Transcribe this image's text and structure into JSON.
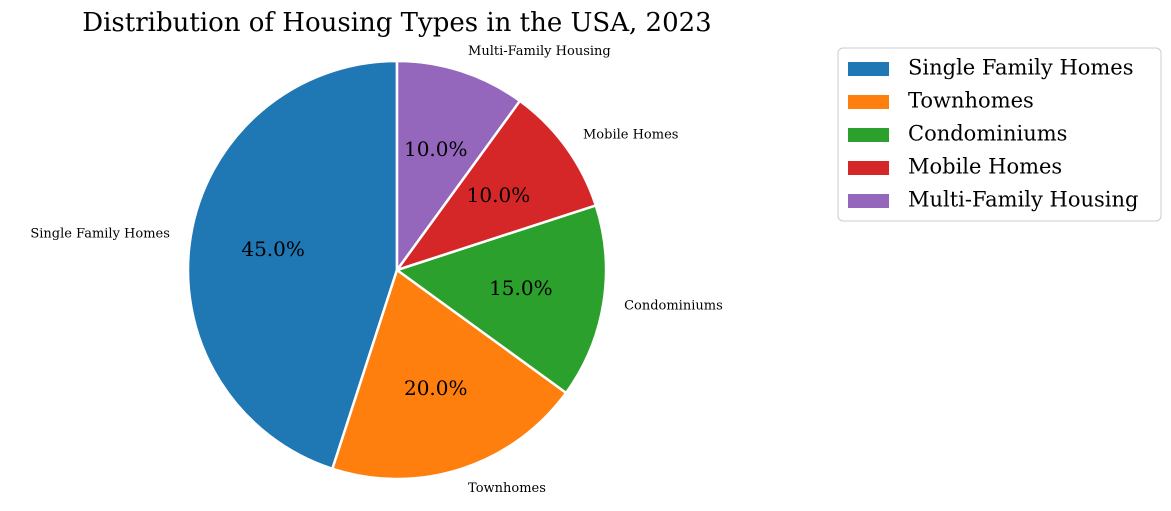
{
  "chart_data": {
    "type": "pie",
    "title": "Distribution of Housing Types in the USA, 2023",
    "slices": [
      {
        "label": "Single Family Homes",
        "value": 45.0,
        "color": "#1f77b4"
      },
      {
        "label": "Townhomes",
        "value": 20.0,
        "color": "#ff7f0e"
      },
      {
        "label": "Condominiums",
        "value": 15.0,
        "color": "#2ca02c"
      },
      {
        "label": "Mobile Homes",
        "value": 10.0,
        "color": "#d62728"
      },
      {
        "label": "Multi-Family Housing",
        "value": 10.0,
        "color": "#9467bd"
      }
    ],
    "value_format": "percent, 1 decimal",
    "start_angle": "90 degrees, counterclockwise",
    "legend_position": "upper right, outside plot"
  }
}
